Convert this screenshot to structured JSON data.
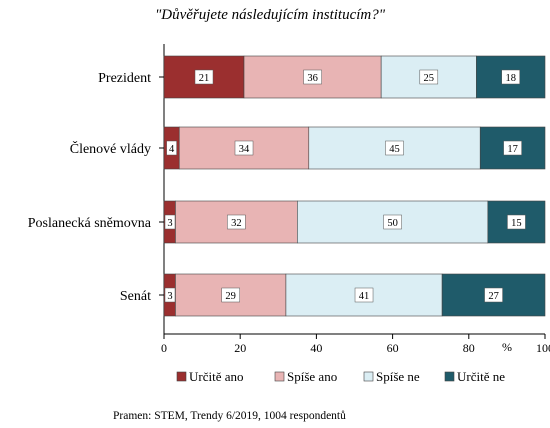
{
  "chart_data": {
    "type": "bar",
    "orientation": "horizontal",
    "stacked": true,
    "title": "\"Důvěřujete následujícím institucím?\"",
    "categories": [
      "Prezident",
      "Členové vlády",
      "Poslanecká sněmovna",
      "Senát"
    ],
    "series": [
      {
        "name": "Určitě ano",
        "color": "#9b2f2f",
        "values": [
          21,
          4,
          3,
          3
        ]
      },
      {
        "name": "Spíše ano",
        "color": "#e8b4b4",
        "values": [
          36,
          34,
          32,
          29
        ]
      },
      {
        "name": "Spíše ne",
        "color": "#dbeef4",
        "values": [
          25,
          45,
          50,
          41
        ]
      },
      {
        "name": "Určitě ne",
        "color": "#1f5b6a",
        "values": [
          18,
          17,
          15,
          27
        ]
      }
    ],
    "xlim": [
      0,
      100
    ],
    "xticks": [
      "0",
      "20",
      "40",
      "60",
      "80",
      "100"
    ],
    "x_unit": "%",
    "legend_position": "bottom",
    "grid": false
  },
  "source_note": "Pramen: STEM, Trendy 6/2019, 1004 respondentů"
}
